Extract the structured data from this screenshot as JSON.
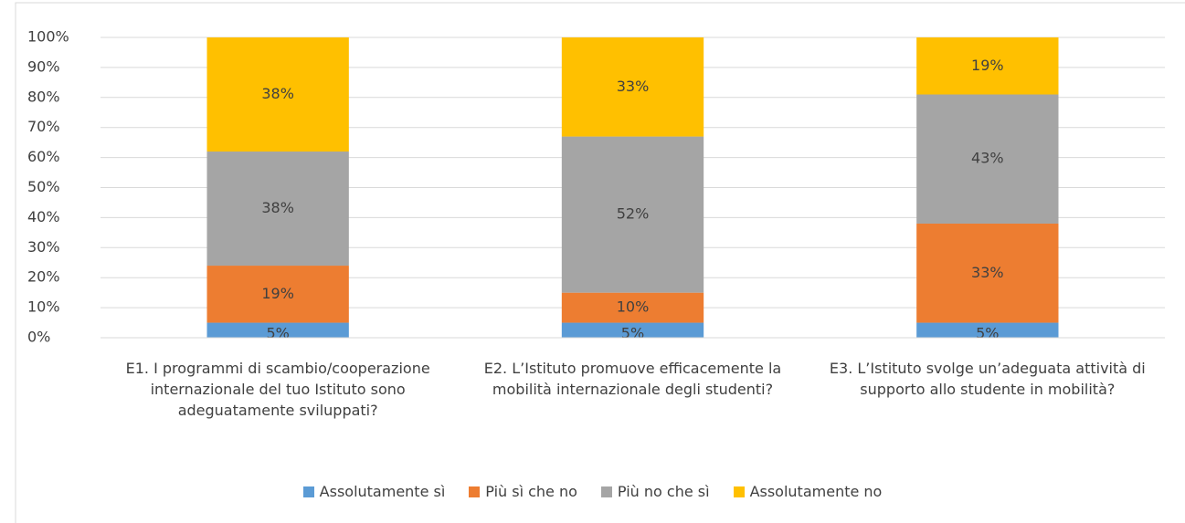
{
  "chart_data": {
    "type": "stacked_bar",
    "categories": [
      "E1. I programmi di scambio/cooperazione internazionale del tuo Istituto sono adeguatamente sviluppati?",
      "E2. L’Istituto promuove efficacemente la mobilità internazionale degli studenti?",
      "E3. L’Istituto svolge un’adeguata attività di supporto allo studente in mobilità?"
    ],
    "series": [
      {
        "name": "Assolutamente sì",
        "color": "#5b9bd5",
        "values": [
          5,
          5,
          5
        ],
        "value_labels": [
          "5%",
          "5%",
          "5%"
        ]
      },
      {
        "name": "Più sì che no",
        "color": "#ed7d31",
        "values": [
          19,
          10,
          33
        ],
        "value_labels": [
          "19%",
          "10%",
          "33%"
        ]
      },
      {
        "name": "Più no che sì",
        "color": "#a5a5a5",
        "values": [
          38,
          52,
          43
        ],
        "value_labels": [
          "38%",
          "52%",
          "43%"
        ]
      },
      {
        "name": "Assolutamente no",
        "color": "#ffc000",
        "values": [
          38,
          33,
          19
        ],
        "value_labels": [
          "38%",
          "33%",
          "19%"
        ]
      }
    ],
    "ylim": [
      0,
      100
    ],
    "yticks": [
      {
        "value": 0,
        "label": "0%"
      },
      {
        "value": 10,
        "label": "10%"
      },
      {
        "value": 20,
        "label": "20%"
      },
      {
        "value": 30,
        "label": "30%"
      },
      {
        "value": 40,
        "label": "40%"
      },
      {
        "value": 50,
        "label": "50%"
      },
      {
        "value": 60,
        "label": "60%"
      },
      {
        "value": 70,
        "label": "70%"
      },
      {
        "value": 80,
        "label": "80%"
      },
      {
        "value": 90,
        "label": "90%"
      },
      {
        "value": 100,
        "label": "100%"
      }
    ],
    "grid": true,
    "legend": "bottom"
  }
}
